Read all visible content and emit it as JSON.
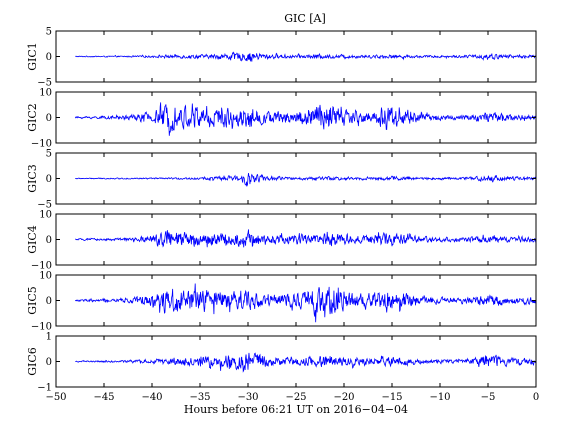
{
  "chart_data": {
    "type": "line",
    "title": "GIC [A]",
    "xlabel": "Hours before  06:21 UT on 2016−04−04",
    "xlim": [
      -50,
      0
    ],
    "x_ticks": [
      -50,
      -45,
      -40,
      -35,
      -30,
      -25,
      -20,
      -15,
      -10,
      -5,
      0
    ],
    "x_tick_labels": [
      "−50",
      "−45",
      "−40",
      "−35",
      "−30",
      "−25",
      "−20",
      "−15",
      "−10",
      "−5",
      "0"
    ],
    "series_color": "#0000ff",
    "data_x_range": [
      -48,
      0
    ],
    "panels": [
      {
        "name": "GIC1",
        "ylabel": "GIC1",
        "ylim": [
          -5,
          5
        ],
        "y_ticks": [
          -5,
          0,
          5
        ],
        "y_tick_labels": [
          "−5",
          "0",
          "5"
        ],
        "envelope": [
          [
            -48,
            0.1
          ],
          [
            -43,
            0.15
          ],
          [
            -40,
            0.25
          ],
          [
            -38,
            0.4
          ],
          [
            -36,
            0.5
          ],
          [
            -34,
            0.5
          ],
          [
            -31,
            1.0
          ],
          [
            -30,
            1.4
          ],
          [
            -28,
            0.6
          ],
          [
            -25,
            0.4
          ],
          [
            -23,
            0.6
          ],
          [
            -21,
            0.5
          ],
          [
            -18,
            0.4
          ],
          [
            -15,
            0.5
          ],
          [
            -12,
            0.3
          ],
          [
            -8,
            0.3
          ],
          [
            -6,
            0.5
          ],
          [
            -5,
            1.0
          ],
          [
            -4,
            0.6
          ],
          [
            -2,
            0.4
          ],
          [
            0,
            0.4
          ]
        ]
      },
      {
        "name": "GIC2",
        "ylabel": "GIC2",
        "ylim": [
          -10,
          10
        ],
        "y_ticks": [
          -10,
          0,
          10
        ],
        "y_tick_labels": [
          "−10",
          "0",
          "10"
        ],
        "envelope": [
          [
            -48,
            0.5
          ],
          [
            -44,
            0.8
          ],
          [
            -42,
            1.5
          ],
          [
            -40,
            3.0
          ],
          [
            -38.5,
            6.5
          ],
          [
            -37,
            5.5
          ],
          [
            -35,
            6.0
          ],
          [
            -33,
            5.0
          ],
          [
            -31,
            4.0
          ],
          [
            -30,
            6.0
          ],
          [
            -28,
            3.0
          ],
          [
            -25,
            3.0
          ],
          [
            -23,
            6.5
          ],
          [
            -21,
            6.5
          ],
          [
            -19,
            3.0
          ],
          [
            -17,
            3.0
          ],
          [
            -15.5,
            7.0
          ],
          [
            -14,
            5.0
          ],
          [
            -12,
            2.0
          ],
          [
            -8,
            1.0
          ],
          [
            -5,
            2.5
          ],
          [
            -2,
            1.5
          ],
          [
            0,
            1.5
          ]
        ]
      },
      {
        "name": "GIC3",
        "ylabel": "GIC3",
        "ylim": [
          -5,
          5
        ],
        "y_ticks": [
          -5,
          0,
          5
        ],
        "y_tick_labels": [
          "−5",
          "0",
          "5"
        ],
        "envelope": [
          [
            -48,
            0.1
          ],
          [
            -42,
            0.15
          ],
          [
            -38,
            0.2
          ],
          [
            -35,
            0.3
          ],
          [
            -31,
            0.8
          ],
          [
            -30,
            1.6
          ],
          [
            -28,
            0.6
          ],
          [
            -25,
            0.3
          ],
          [
            -22,
            0.5
          ],
          [
            -20,
            0.4
          ],
          [
            -16,
            0.4
          ],
          [
            -15,
            0.6
          ],
          [
            -12,
            0.3
          ],
          [
            -8,
            0.3
          ],
          [
            -6,
            0.5
          ],
          [
            -5,
            0.9
          ],
          [
            -3,
            0.5
          ],
          [
            0,
            0.3
          ]
        ]
      },
      {
        "name": "GIC4",
        "ylabel": "GIC4",
        "ylim": [
          -10,
          10
        ],
        "y_ticks": [
          -10,
          0,
          10
        ],
        "y_tick_labels": [
          "−10",
          "0",
          "10"
        ],
        "envelope": [
          [
            -48,
            0.4
          ],
          [
            -44,
            0.6
          ],
          [
            -42,
            1.0
          ],
          [
            -40,
            2.0
          ],
          [
            -38.5,
            5.0
          ],
          [
            -37,
            3.5
          ],
          [
            -35,
            3.5
          ],
          [
            -33,
            3.0
          ],
          [
            -30,
            3.5
          ],
          [
            -28,
            2.0
          ],
          [
            -25,
            2.5
          ],
          [
            -23,
            3.0
          ],
          [
            -21,
            3.0
          ],
          [
            -19,
            2.0
          ],
          [
            -17,
            2.5
          ],
          [
            -15.5,
            4.0
          ],
          [
            -14,
            2.5
          ],
          [
            -12,
            1.5
          ],
          [
            -8,
            1.0
          ],
          [
            -5,
            1.8
          ],
          [
            -2,
            1.2
          ],
          [
            0,
            1.2
          ]
        ]
      },
      {
        "name": "GIC5",
        "ylabel": "GIC5",
        "ylim": [
          -10,
          10
        ],
        "y_ticks": [
          -10,
          0,
          10
        ],
        "y_tick_labels": [
          "−10",
          "0",
          "10"
        ],
        "envelope": [
          [
            -48,
            0.5
          ],
          [
            -44,
            0.8
          ],
          [
            -42,
            1.5
          ],
          [
            -40,
            3.0
          ],
          [
            -38.5,
            7.0
          ],
          [
            -37,
            6.0
          ],
          [
            -35,
            6.0
          ],
          [
            -33,
            5.0
          ],
          [
            -31,
            4.0
          ],
          [
            -30,
            5.0
          ],
          [
            -28,
            3.0
          ],
          [
            -25,
            3.5
          ],
          [
            -23,
            7.0
          ],
          [
            -21,
            7.0
          ],
          [
            -19,
            4.0
          ],
          [
            -17,
            4.0
          ],
          [
            -15.5,
            6.0
          ],
          [
            -14,
            4.5
          ],
          [
            -12,
            2.0
          ],
          [
            -8,
            1.2
          ],
          [
            -5,
            3.0
          ],
          [
            -2,
            1.8
          ],
          [
            0,
            1.8
          ]
        ]
      },
      {
        "name": "GIC6",
        "ylabel": "GIC6",
        "ylim": [
          -1,
          1
        ],
        "y_ticks": [
          -1,
          0,
          1
        ],
        "y_tick_labels": [
          "−1",
          "0",
          "1"
        ],
        "envelope": [
          [
            -48,
            0.03
          ],
          [
            -44,
            0.05
          ],
          [
            -40,
            0.1
          ],
          [
            -38,
            0.2
          ],
          [
            -36,
            0.25
          ],
          [
            -34,
            0.25
          ],
          [
            -31,
            0.4
          ],
          [
            -30,
            0.5
          ],
          [
            -28,
            0.3
          ],
          [
            -25,
            0.2
          ],
          [
            -23,
            0.3
          ],
          [
            -21,
            0.25
          ],
          [
            -18,
            0.2
          ],
          [
            -15,
            0.25
          ],
          [
            -12,
            0.12
          ],
          [
            -8,
            0.1
          ],
          [
            -6,
            0.2
          ],
          [
            -5,
            0.4
          ],
          [
            -3,
            0.2
          ],
          [
            0,
            0.15
          ]
        ]
      }
    ]
  }
}
